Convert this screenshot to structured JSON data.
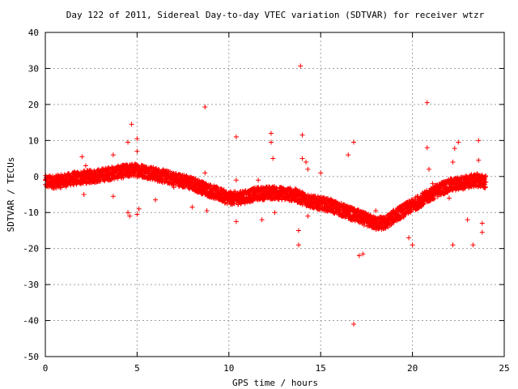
{
  "chart_data": {
    "type": "scatter",
    "title": "Day 122 of 2011, Sidereal Day-to-day VTEC variation (SDTVAR) for receiver wtzr",
    "xlabel": "GPS time / hours",
    "ylabel": "SDTVAR / TECUs",
    "xlim": [
      0,
      25
    ],
    "ylim": [
      -50,
      40
    ],
    "x_ticks": [
      "0",
      "5",
      "10",
      "15",
      "20",
      "25"
    ],
    "y_ticks": [
      "40",
      "30",
      "20",
      "10",
      "0",
      "-10",
      "-20",
      "-30",
      "-40",
      "-50"
    ],
    "grid": true,
    "legend": "none",
    "marker": "plus",
    "color": "#ff0000",
    "band": [
      [
        0.0,
        -1.5
      ],
      [
        0.5,
        -1.5
      ],
      [
        1.0,
        -1.2
      ],
      [
        1.5,
        -0.6
      ],
      [
        2.0,
        -0.3
      ],
      [
        2.5,
        0.0
      ],
      [
        3.0,
        0.3
      ],
      [
        3.5,
        0.8
      ],
      [
        4.0,
        1.2
      ],
      [
        4.5,
        1.6
      ],
      [
        5.0,
        1.8
      ],
      [
        5.5,
        1.3
      ],
      [
        6.0,
        0.6
      ],
      [
        6.5,
        0.0
      ],
      [
        7.0,
        -0.6
      ],
      [
        7.5,
        -1.2
      ],
      [
        8.0,
        -2.0
      ],
      [
        8.5,
        -3.0
      ],
      [
        9.0,
        -4.0
      ],
      [
        9.5,
        -5.0
      ],
      [
        10.0,
        -6.0
      ],
      [
        10.5,
        -6.0
      ],
      [
        11.0,
        -5.5
      ],
      [
        11.5,
        -4.8
      ],
      [
        12.0,
        -4.6
      ],
      [
        12.5,
        -4.5
      ],
      [
        13.0,
        -4.8
      ],
      [
        13.5,
        -5.0
      ],
      [
        14.0,
        -6.0
      ],
      [
        14.5,
        -7.0
      ],
      [
        15.0,
        -7.5
      ],
      [
        15.5,
        -8.0
      ],
      [
        16.0,
        -9.0
      ],
      [
        16.5,
        -10.0
      ],
      [
        17.0,
        -11.0
      ],
      [
        17.5,
        -12.0
      ],
      [
        18.0,
        -13.0
      ],
      [
        18.5,
        -13.0
      ],
      [
        19.0,
        -11.0
      ],
      [
        19.5,
        -9.5
      ],
      [
        20.0,
        -8.0
      ],
      [
        20.5,
        -6.5
      ],
      [
        21.0,
        -5.0
      ],
      [
        21.5,
        -3.5
      ],
      [
        22.0,
        -2.5
      ],
      [
        22.5,
        -2.0
      ],
      [
        23.0,
        -1.5
      ],
      [
        23.5,
        -1.0
      ],
      [
        24.0,
        -1.5
      ]
    ],
    "outliers": [
      [
        2.0,
        5.5
      ],
      [
        2.2,
        3.0
      ],
      [
        2.1,
        -5.0
      ],
      [
        3.7,
        6.0
      ],
      [
        3.7,
        -5.5
      ],
      [
        4.5,
        9.5
      ],
      [
        4.5,
        -10.0
      ],
      [
        4.6,
        -11.0
      ],
      [
        4.7,
        14.5
      ],
      [
        5.0,
        10.5
      ],
      [
        5.0,
        7.0
      ],
      [
        5.1,
        -9.0
      ],
      [
        5.0,
        -10.5
      ],
      [
        6.0,
        -6.5
      ],
      [
        7.0,
        -3.0
      ],
      [
        8.0,
        -8.5
      ],
      [
        8.7,
        19.3
      ],
      [
        8.7,
        1.0
      ],
      [
        8.8,
        -9.5
      ],
      [
        10.4,
        11.0
      ],
      [
        10.4,
        -1.0
      ],
      [
        10.4,
        -12.5
      ],
      [
        11.6,
        -1.0
      ],
      [
        11.8,
        -12.0
      ],
      [
        12.3,
        12.0
      ],
      [
        12.3,
        9.5
      ],
      [
        12.4,
        5.0
      ],
      [
        12.5,
        -10.0
      ],
      [
        13.9,
        30.7
      ],
      [
        14.0,
        11.5
      ],
      [
        14.0,
        5.0
      ],
      [
        14.2,
        4.0
      ],
      [
        14.3,
        2.0
      ],
      [
        13.8,
        -15.0
      ],
      [
        13.8,
        -19.0
      ],
      [
        14.3,
        -11.0
      ],
      [
        15.0,
        1.0
      ],
      [
        16.5,
        6.0
      ],
      [
        16.8,
        9.5
      ],
      [
        16.8,
        -41.0
      ],
      [
        17.1,
        -22.0
      ],
      [
        17.3,
        -21.5
      ],
      [
        18.0,
        -9.5
      ],
      [
        19.8,
        -17.0
      ],
      [
        20.0,
        -19.0
      ],
      [
        20.8,
        20.5
      ],
      [
        20.8,
        8.0
      ],
      [
        20.9,
        2.0
      ],
      [
        21.1,
        -2.0
      ],
      [
        22.0,
        -6.0
      ],
      [
        22.2,
        4.0
      ],
      [
        22.3,
        7.8
      ],
      [
        22.5,
        9.5
      ],
      [
        22.2,
        -19.0
      ],
      [
        23.0,
        -12.0
      ],
      [
        23.3,
        -19.0
      ],
      [
        23.6,
        10.0
      ],
      [
        23.6,
        4.5
      ],
      [
        23.8,
        -13.0
      ],
      [
        23.8,
        -15.5
      ]
    ]
  }
}
